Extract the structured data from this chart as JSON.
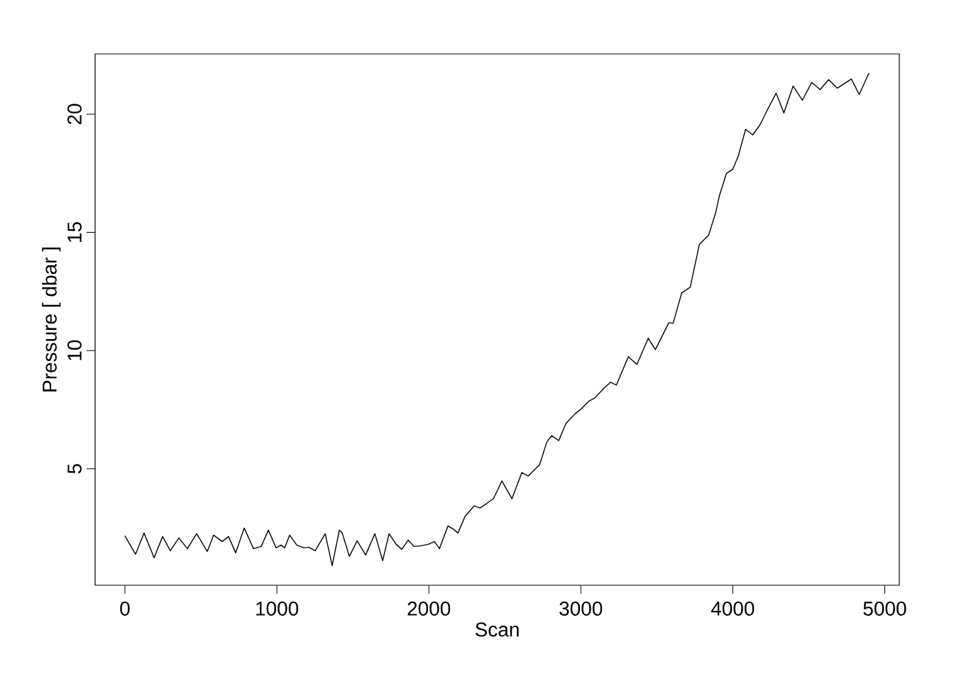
{
  "chart_data": {
    "type": "line",
    "xlabel": "Scan",
    "ylabel": "Pressure [ dbar ]",
    "color": "#000000",
    "x": [
      0,
      70,
      126,
      192,
      248,
      299,
      355,
      411,
      472,
      542,
      584,
      640,
      682,
      729,
      785,
      846,
      897,
      944,
      995,
      1028,
      1051,
      1084,
      1131,
      1178,
      1210,
      1252,
      1318,
      1364,
      1411,
      1430,
      1477,
      1528,
      1584,
      1645,
      1696,
      1738,
      1785,
      1822,
      1864,
      1902,
      1949,
      1995,
      2037,
      2070,
      2126,
      2164,
      2192,
      2238,
      2299,
      2336,
      2379,
      2425,
      2481,
      2547,
      2612,
      2654,
      2729,
      2776,
      2808,
      2855,
      2902,
      2963,
      2999,
      3056,
      3093,
      3150,
      3196,
      3234,
      3313,
      3369,
      3444,
      3491,
      3579,
      3607,
      3664,
      3720,
      3780,
      3841,
      3888,
      3911,
      3958,
      4000,
      4037,
      4084,
      4131,
      4178,
      4234,
      4285,
      4336,
      4397,
      4458,
      4519,
      4575,
      4631,
      4687,
      4780,
      4832,
      4893,
      4900
    ],
    "values": [
      2.16,
      1.38,
      2.28,
      1.23,
      2.13,
      1.53,
      2.07,
      1.62,
      2.25,
      1.5,
      2.19,
      1.92,
      2.13,
      1.44,
      2.49,
      1.62,
      1.71,
      2.4,
      1.65,
      1.77,
      1.65,
      2.19,
      1.77,
      1.65,
      1.68,
      1.53,
      2.25,
      0.9,
      2.4,
      2.28,
      1.29,
      1.95,
      1.35,
      2.25,
      1.11,
      2.25,
      1.8,
      1.59,
      1.98,
      1.71,
      1.74,
      1.8,
      1.92,
      1.62,
      2.58,
      2.43,
      2.28,
      2.98,
      3.43,
      3.34,
      3.52,
      3.73,
      4.48,
      3.73,
      4.84,
      4.69,
      5.17,
      6.13,
      6.4,
      6.19,
      6.91,
      7.33,
      7.51,
      7.87,
      8.0,
      8.39,
      8.66,
      8.54,
      9.74,
      9.41,
      10.52,
      10.04,
      11.18,
      11.15,
      12.44,
      12.68,
      14.49,
      14.88,
      15.84,
      16.53,
      17.49,
      17.67,
      18.24,
      19.36,
      19.12,
      19.54,
      20.26,
      20.89,
      20.05,
      21.19,
      20.59,
      21.34,
      21.04,
      21.46,
      21.1,
      21.49,
      20.83,
      21.7,
      21.73
    ],
    "xlim": [
      -196,
      5096
    ],
    "ylim": [
      0.07,
      22.55
    ],
    "xticks": [
      0,
      1000,
      2000,
      3000,
      4000,
      5000
    ],
    "yticks": [
      5,
      10,
      15,
      20
    ]
  }
}
